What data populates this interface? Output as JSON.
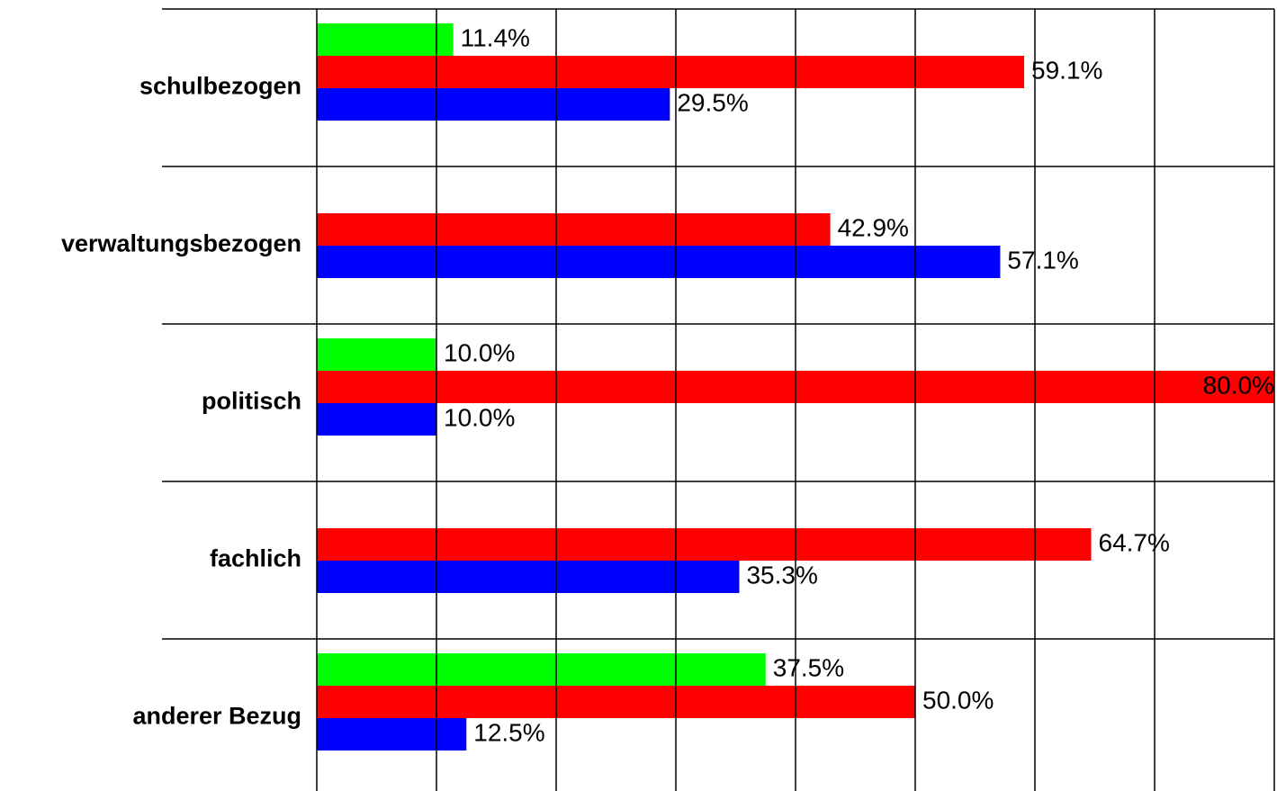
{
  "chart_data": {
    "type": "hbar",
    "categories": [
      "schulbezogen",
      "verwaltungsbezogen",
      "politisch",
      "fachlich",
      "anderer Bezug"
    ],
    "series": [
      {
        "color": "#00ff00",
        "values": [
          11.4,
          null,
          10.0,
          null,
          37.5
        ],
        "value_labels": [
          "11.4%",
          null,
          "10.0%",
          null,
          "37.5%"
        ]
      },
      {
        "color": "#ff0000",
        "values": [
          59.1,
          42.9,
          80.0,
          64.7,
          50.0
        ],
        "value_labels": [
          "59.1%",
          "42.9%",
          "80.0%",
          "64.7%",
          "50.0%"
        ]
      },
      {
        "color": "#0000ff",
        "values": [
          29.5,
          57.1,
          10.0,
          35.3,
          12.5
        ],
        "value_labels": [
          "29.5%",
          "57.1%",
          "10.0%",
          "35.3%",
          "12.5%"
        ]
      }
    ],
    "xlim": [
      0,
      80
    ],
    "xticks": [
      0,
      10,
      20,
      30,
      40,
      50,
      60,
      70,
      80
    ],
    "grid": true
  }
}
